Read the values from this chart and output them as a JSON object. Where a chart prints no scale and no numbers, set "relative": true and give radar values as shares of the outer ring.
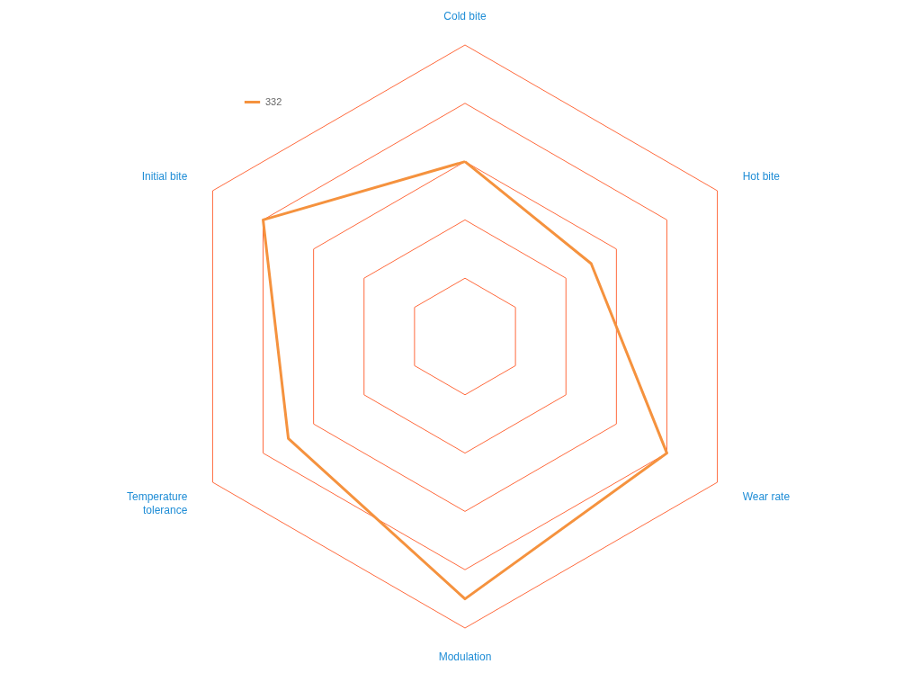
{
  "chart_data": {
    "type": "radar",
    "relative": true,
    "grid": true,
    "legend": "top left",
    "line_style": "solid",
    "marker": "none",
    "categories": [
      "Cold bite",
      "Hot bite",
      "Wear rate",
      "Modulation",
      "Temperature tolerance",
      "Initial bite"
    ],
    "series": [
      {
        "name": "332",
        "color": "#f5923e",
        "values": [
          0.6,
          0.5,
          0.8,
          0.9,
          0.7,
          0.8
        ]
      }
    ]
  }
}
